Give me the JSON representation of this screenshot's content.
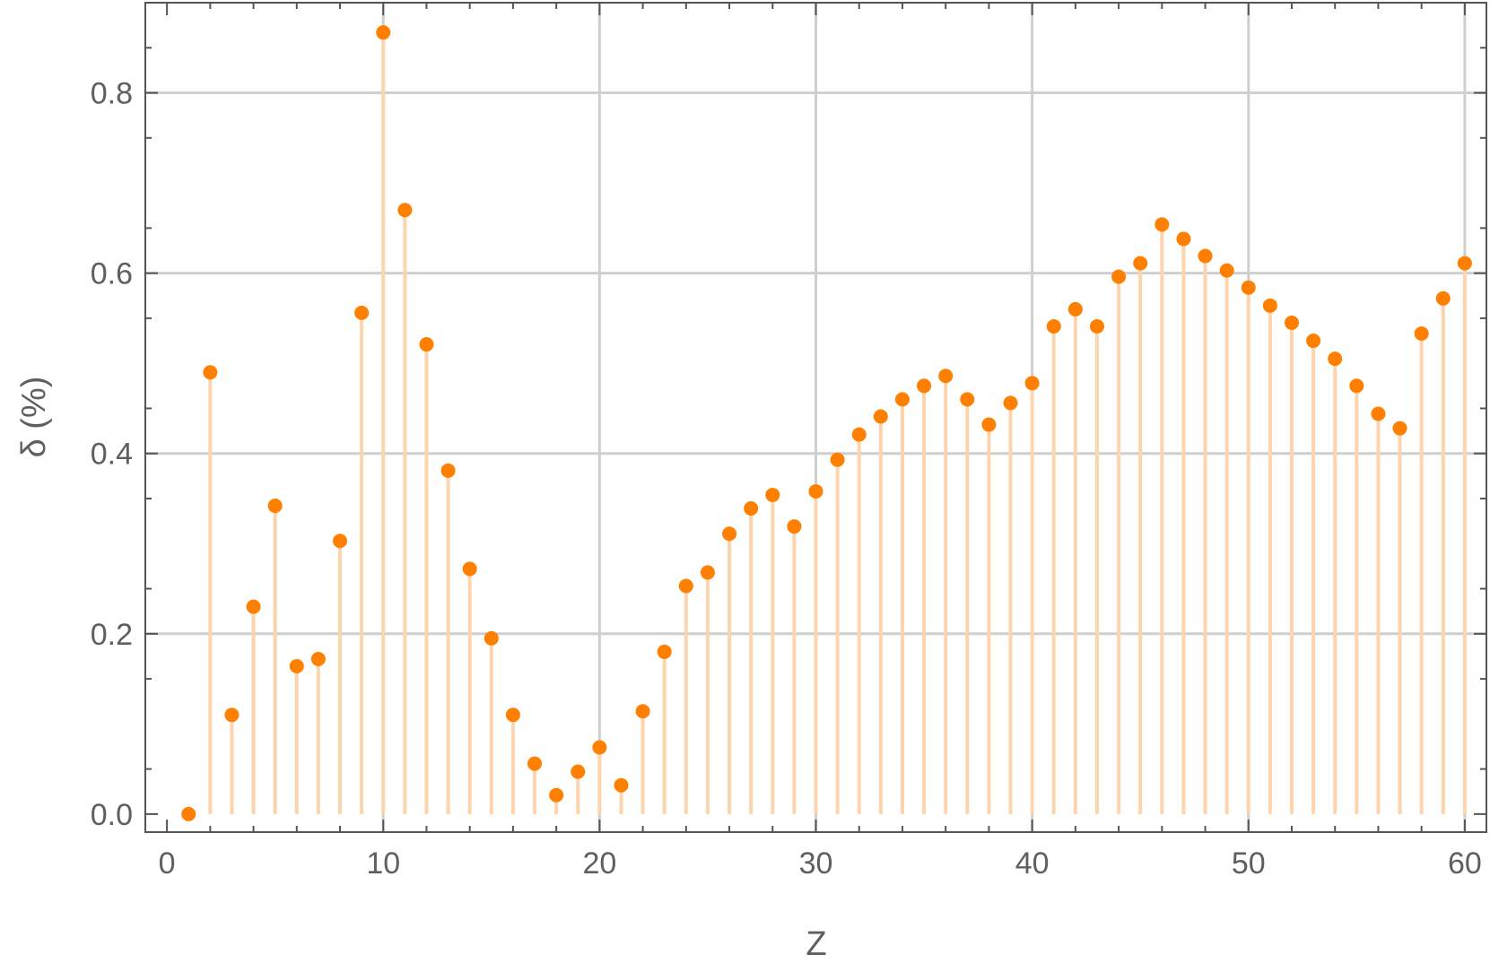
{
  "chart_data": {
    "type": "scatter",
    "style": "stem",
    "xlabel": "Z",
    "ylabel": "δ (%)",
    "xlim": [
      -1,
      61
    ],
    "ylim": [
      -0.02,
      0.9
    ],
    "x_ticks": [
      0,
      10,
      20,
      30,
      40,
      50,
      60
    ],
    "x_tick_labels": [
      "0",
      "10",
      "20",
      "30",
      "40",
      "50",
      "60"
    ],
    "y_ticks": [
      0.0,
      0.2,
      0.4,
      0.6,
      0.8
    ],
    "y_tick_labels": [
      "0.0",
      "0.2",
      "0.4",
      "0.6",
      "0.8"
    ],
    "grid": true,
    "colors": {
      "points": "#ff8000",
      "stems": "#fdd4ad",
      "grid": "#cfcfcf",
      "frame": "#555555"
    },
    "series": [
      {
        "x": [
          1,
          2,
          3,
          4,
          5,
          6,
          7,
          8,
          9,
          10,
          11,
          12,
          13,
          14,
          15,
          16,
          17,
          18,
          19,
          20,
          21,
          22,
          23,
          24,
          25,
          26,
          27,
          28,
          29,
          30,
          31,
          32,
          33,
          34,
          35,
          36,
          37,
          38,
          39,
          40,
          41,
          42,
          43,
          44,
          45,
          46,
          47,
          48,
          49,
          50,
          51,
          52,
          53,
          54,
          55,
          56,
          57,
          58,
          59,
          60
        ],
        "y": [
          0.0,
          0.49,
          0.11,
          0.23,
          0.342,
          0.164,
          0.172,
          0.303,
          0.556,
          0.867,
          0.67,
          0.521,
          0.381,
          0.272,
          0.195,
          0.11,
          0.056,
          0.021,
          0.047,
          0.074,
          0.032,
          0.114,
          0.18,
          0.253,
          0.268,
          0.311,
          0.339,
          0.354,
          0.319,
          0.358,
          0.393,
          0.421,
          0.441,
          0.46,
          0.475,
          0.486,
          0.46,
          0.432,
          0.456,
          0.478,
          0.541,
          0.56,
          0.541,
          0.596,
          0.611,
          0.654,
          0.638,
          0.619,
          0.603,
          0.584,
          0.564,
          0.545,
          0.525,
          0.505,
          0.475,
          0.444,
          0.428,
          0.533,
          0.572,
          0.611
        ]
      }
    ]
  }
}
